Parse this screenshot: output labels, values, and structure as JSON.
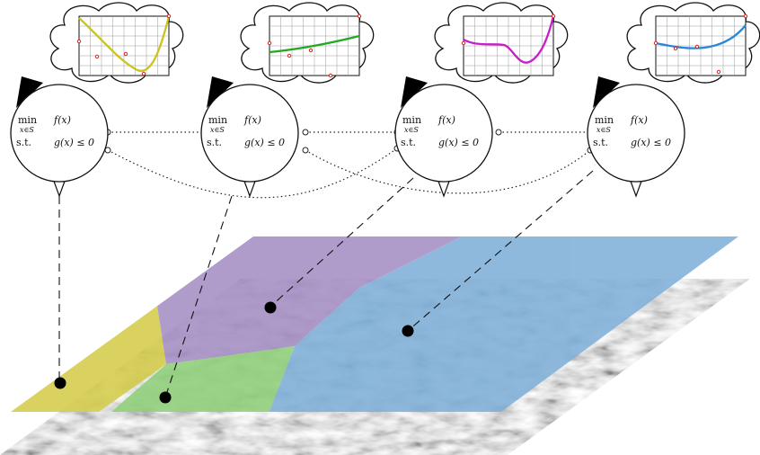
{
  "agents": [
    {
      "min_label": "min",
      "set_subscript": "x∈S",
      "objective": "f(x)",
      "st_label": "s.t.",
      "constraint": "g(x) ≤ 0",
      "curve_color": "#c9c41e"
    },
    {
      "min_label": "min",
      "set_subscript": "x∈S",
      "objective": "f(x)",
      "st_label": "s.t.",
      "constraint": "g(x) ≤ 0",
      "curve_color": "#1faa1f"
    },
    {
      "min_label": "min",
      "set_subscript": "x∈S",
      "objective": "f(x)",
      "st_label": "s.t.",
      "constraint": "g(x) ≤ 0",
      "curve_color": "#c81ec8"
    },
    {
      "min_label": "min",
      "set_subscript": "x∈S",
      "objective": "f(x)",
      "st_label": "s.t.",
      "constraint": "g(x) ≤ 0",
      "curve_color": "#2a86d8"
    }
  ],
  "regions": [
    {
      "name": "yellow",
      "color": "#d4cc4a"
    },
    {
      "name": "purple",
      "color": "#a58fc4"
    },
    {
      "name": "green",
      "color": "#8fd07a"
    },
    {
      "name": "blue",
      "color": "#7fb0d9"
    }
  ]
}
